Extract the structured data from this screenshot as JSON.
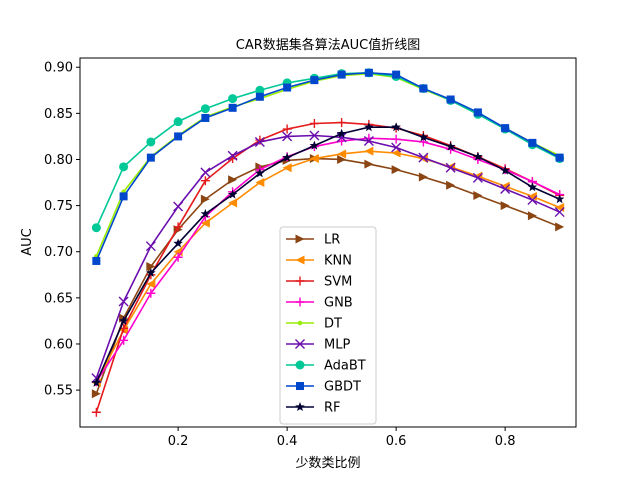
{
  "chart_data": {
    "type": "line",
    "title": "CAR数据集各算法AUC值折线图",
    "xlabel": "少数类比例",
    "ylabel": "AUC",
    "xlim": [
      0.02,
      0.93
    ],
    "ylim": [
      0.51,
      0.91
    ],
    "xticks": [
      0.2,
      0.4,
      0.6,
      0.8
    ],
    "xtick_labels": [
      "0.2",
      "0.4",
      "0.6",
      "0.8"
    ],
    "yticks": [
      0.55,
      0.6,
      0.65,
      0.7,
      0.75,
      0.8,
      0.85,
      0.9
    ],
    "ytick_labels": [
      "0.55",
      "0.60",
      "0.65",
      "0.70",
      "0.75",
      "0.80",
      "0.85",
      "0.90"
    ],
    "legend_position": "lower-center",
    "x": [
      0.05,
      0.1,
      0.15,
      0.2,
      0.25,
      0.3,
      0.35,
      0.4,
      0.45,
      0.5,
      0.55,
      0.6,
      0.65,
      0.7,
      0.75,
      0.8,
      0.85,
      0.9
    ],
    "series": [
      {
        "name": "LR",
        "color": "#8b4513",
        "marker": "triangle-right",
        "values": [
          0.546,
          0.628,
          0.684,
          0.724,
          0.757,
          0.778,
          0.792,
          0.799,
          0.801,
          0.8,
          0.795,
          0.789,
          0.781,
          0.772,
          0.761,
          0.75,
          0.739,
          0.727
        ]
      },
      {
        "name": "KNN",
        "color": "#ff8c00",
        "marker": "triangle-left",
        "values": [
          0.558,
          0.615,
          0.665,
          0.7,
          0.731,
          0.753,
          0.775,
          0.791,
          0.801,
          0.806,
          0.809,
          0.807,
          0.801,
          0.792,
          0.782,
          0.771,
          0.76,
          0.748
        ]
      },
      {
        "name": "SVM",
        "color": "#e41a1c",
        "marker": "plus",
        "values": [
          0.526,
          0.617,
          0.675,
          0.727,
          0.777,
          0.801,
          0.821,
          0.833,
          0.839,
          0.84,
          0.838,
          0.834,
          0.826,
          0.815,
          0.803,
          0.79,
          0.776,
          0.761
        ]
      },
      {
        "name": "GNB",
        "color": "#ff00cc",
        "marker": "plus",
        "values": [
          0.559,
          0.604,
          0.655,
          0.694,
          0.738,
          0.765,
          0.789,
          0.803,
          0.814,
          0.82,
          0.823,
          0.822,
          0.819,
          0.811,
          0.8,
          0.789,
          0.776,
          0.762
        ]
      },
      {
        "name": "DT",
        "color": "#99ee00",
        "marker": "point",
        "values": [
          0.695,
          0.765,
          0.803,
          0.826,
          0.846,
          0.857,
          0.866,
          0.876,
          0.885,
          0.891,
          0.893,
          0.889,
          0.876,
          0.864,
          0.849,
          0.834,
          0.818,
          0.804
        ]
      },
      {
        "name": "MLP",
        "color": "#6a0dad",
        "marker": "x",
        "values": [
          0.563,
          0.646,
          0.706,
          0.749,
          0.786,
          0.804,
          0.819,
          0.825,
          0.826,
          0.824,
          0.82,
          0.813,
          0.802,
          0.791,
          0.78,
          0.768,
          0.756,
          0.743
        ]
      },
      {
        "name": "AdaBT",
        "color": "#00c896",
        "marker": "circle",
        "values": [
          0.726,
          0.792,
          0.819,
          0.841,
          0.855,
          0.866,
          0.875,
          0.883,
          0.888,
          0.893,
          0.894,
          0.89,
          0.877,
          0.864,
          0.849,
          0.833,
          0.816,
          0.801
        ]
      },
      {
        "name": "GBDT",
        "color": "#0047cc",
        "marker": "square",
        "values": [
          0.69,
          0.76,
          0.802,
          0.825,
          0.845,
          0.856,
          0.868,
          0.878,
          0.886,
          0.892,
          0.894,
          0.892,
          0.877,
          0.865,
          0.851,
          0.834,
          0.818,
          0.802
        ]
      },
      {
        "name": "RF",
        "color": "#000033",
        "marker": "star",
        "values": [
          0.558,
          0.625,
          0.677,
          0.709,
          0.741,
          0.762,
          0.785,
          0.802,
          0.815,
          0.828,
          0.835,
          0.835,
          0.824,
          0.814,
          0.803,
          0.788,
          0.77,
          0.757
        ]
      }
    ]
  }
}
